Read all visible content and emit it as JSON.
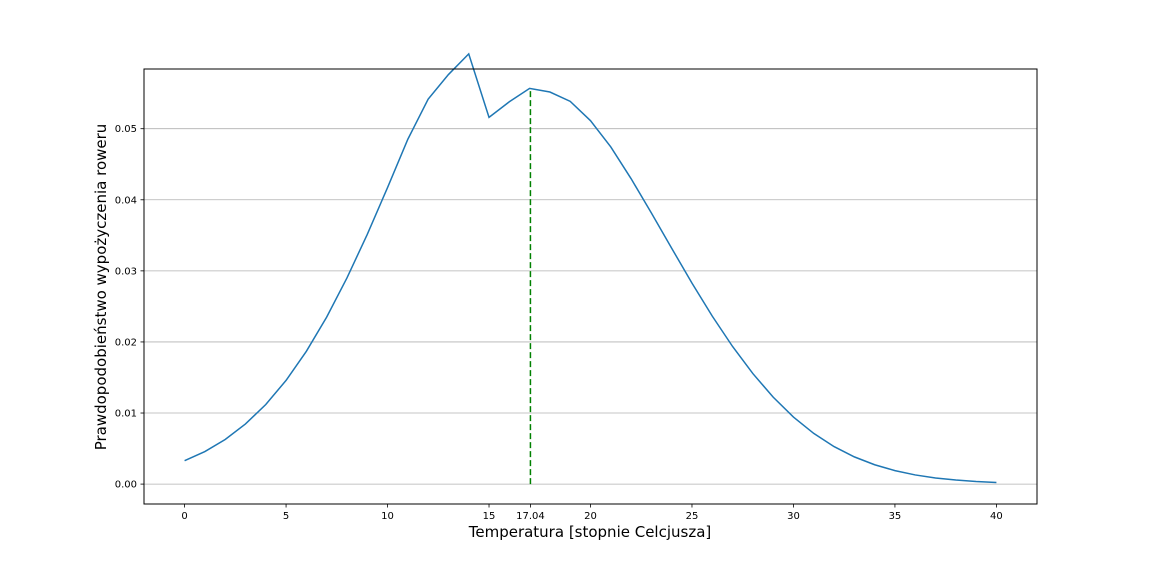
{
  "chart_data": {
    "type": "line",
    "title": "",
    "xlabel": "Temperatura [stopnie Celcjusza]",
    "ylabel": "Prawdopodobieństwo wypożyczenia roweru",
    "xlim": [
      -2,
      42
    ],
    "ylim": [
      -0.0028,
      0.0584
    ],
    "x_ticks": [
      0,
      5,
      10,
      15,
      17.04,
      20,
      25,
      30,
      35,
      40
    ],
    "x_tick_labels": [
      "0",
      "5",
      "10",
      "15",
      "17.04",
      "20",
      "25",
      "30",
      "35",
      "40"
    ],
    "y_ticks": [
      0.0,
      0.01,
      0.02,
      0.03,
      0.04,
      0.05
    ],
    "y_tick_labels": [
      "0.00",
      "0.01",
      "0.02",
      "0.03",
      "0.04",
      "0.05"
    ],
    "grid": {
      "y": true,
      "x": false
    },
    "series": [
      {
        "color": "#1f77b4",
        "x": [
          0,
          1,
          2,
          3,
          4,
          5,
          6,
          7,
          8,
          9,
          10,
          11,
          12,
          13,
          14,
          15,
          16,
          17,
          18,
          19,
          20,
          21,
          22,
          23,
          24,
          25,
          26,
          27,
          28,
          29,
          30,
          31,
          32,
          33,
          34,
          35,
          36,
          37,
          38,
          39,
          40
        ],
        "values": [
          0.00329,
          0.00458,
          0.00628,
          0.00846,
          0.0112,
          0.01459,
          0.01868,
          0.02349,
          0.029,
          0.03513,
          0.04172,
          0.04852,
          0.05415,
          0.05762,
          0.06053,
          0.0516,
          0.05379,
          0.05567,
          0.05516,
          0.05385,
          0.05113,
          0.04743,
          0.04297,
          0.03814,
          0.03318,
          0.02828,
          0.02363,
          0.01936,
          0.01555,
          0.01223,
          0.00943,
          0.00713,
          0.00528,
          0.00383,
          0.00272,
          0.0019,
          0.00129,
          0.00086,
          0.00057,
          0.00036,
          0.00023
        ]
      }
    ],
    "vline": {
      "x": 17.04,
      "y_from": 0,
      "y_to": 0.0556,
      "color": "#008000",
      "style": "dashed"
    }
  }
}
